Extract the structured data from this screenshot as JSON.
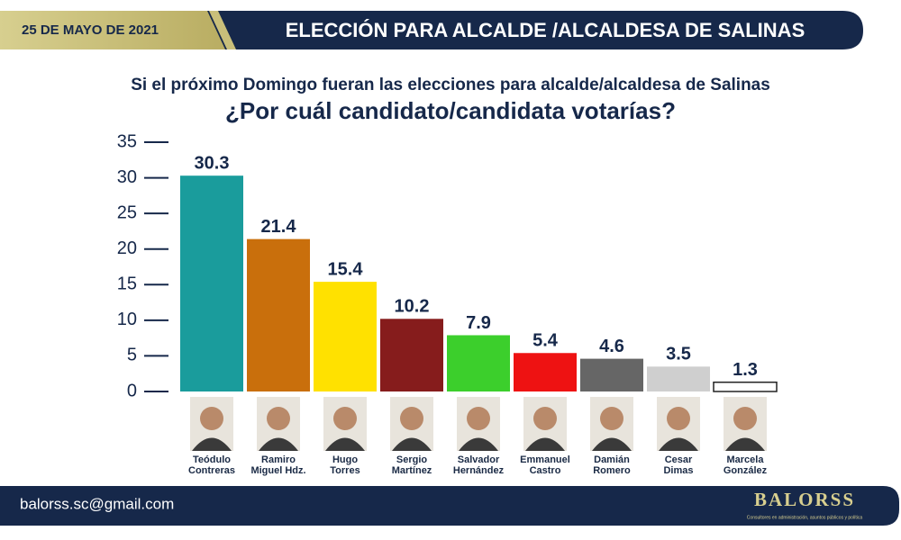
{
  "header": {
    "date": "25 DE MAYO DE 2021",
    "title": "ELECCIÓN PARA ALCALDE /ALCALDESA DE SALINAS"
  },
  "chart_data": {
    "type": "bar",
    "subtitle": "Si el próximo Domingo fueran las elecciones para alcalde/alcaldesa de Salinas",
    "title": "¿Por cuál candidato/candidata votarías?",
    "categories": [
      "Teódulo\nContreras",
      "Ramiro\nMiguel Hdz.",
      "Hugo\nTorres",
      "Sergio\nMartínez",
      "Salvador\nHernández",
      "Emmanuel\nCastro",
      "Damián\nRomero",
      "Cesar\nDimas",
      "Marcela\nGonzález"
    ],
    "values": [
      30.3,
      21.4,
      15.4,
      10.2,
      7.9,
      5.4,
      4.6,
      3.5,
      1.3
    ],
    "colors": [
      "#1a9c9c",
      "#c96f0c",
      "#ffe100",
      "#861c1c",
      "#3ccf2c",
      "#ee1212",
      "#666666",
      "#cfcfcf",
      "#ffffff"
    ],
    "ylim": [
      0,
      35
    ],
    "yticks": [
      0,
      5,
      10,
      15,
      20,
      25,
      30,
      35
    ]
  },
  "footer": {
    "email": "balorss.sc@gmail.com",
    "brand": "BALORSS",
    "tagline": "Consultores en administración, asuntos públicos y política"
  }
}
